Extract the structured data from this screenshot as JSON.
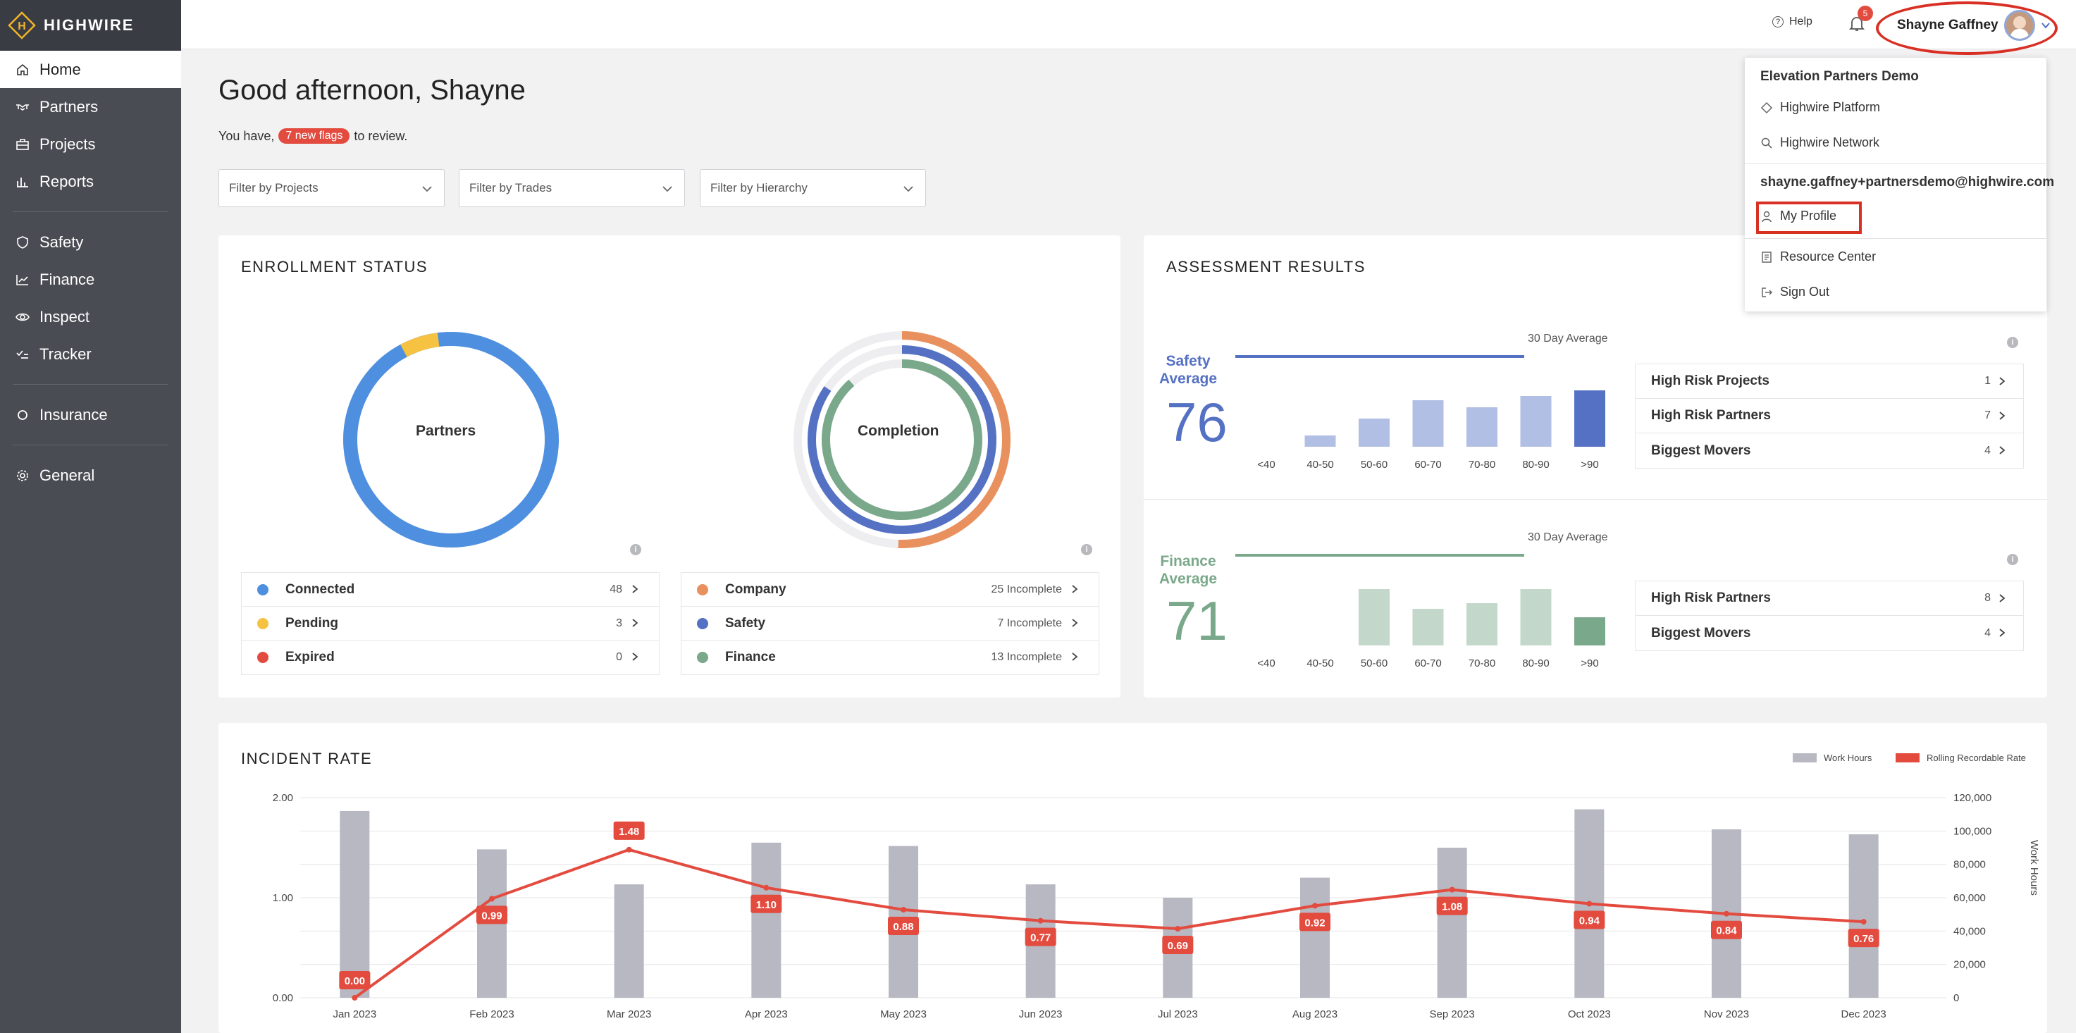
{
  "app": {
    "name": "HIGHWIRE"
  },
  "sidebar": {
    "items": [
      {
        "label": "Home",
        "icon": "home-icon"
      },
      {
        "label": "Partners",
        "icon": "handshake-icon"
      },
      {
        "label": "Projects",
        "icon": "briefcase-icon"
      },
      {
        "label": "Reports",
        "icon": "bar-chart-icon"
      },
      {
        "label": "Safety",
        "icon": "shield-icon"
      },
      {
        "label": "Finance",
        "icon": "trend-icon"
      },
      {
        "label": "Inspect",
        "icon": "eye-icon"
      },
      {
        "label": "Tracker",
        "icon": "check-list-icon"
      },
      {
        "label": "Insurance",
        "icon": "umbrella-icon"
      },
      {
        "label": "General",
        "icon": "gear-icon"
      }
    ]
  },
  "topbar": {
    "help": "Help",
    "notifications": "5",
    "user_name": "Shayne Gaffney"
  },
  "greeting": "Good afternoon, Shayne",
  "review": {
    "prefix": "You have,",
    "flags": "7 new flags",
    "suffix": "to review."
  },
  "filters": [
    "Filter by Projects",
    "Filter by Trades",
    "Filter by Hierarchy"
  ],
  "enrollment": {
    "title": "ENROLLMENT STATUS",
    "partners_label": "Partners",
    "completion_label": "Completion",
    "partners": [
      {
        "label": "Connected",
        "count": "48",
        "color": "#4f8fdf"
      },
      {
        "label": "Pending",
        "count": "3",
        "color": "#f5c242"
      },
      {
        "label": "Expired",
        "count": "0",
        "color": "#e34b3f"
      }
    ],
    "completion": [
      {
        "label": "Company",
        "count": "25 Incomplete",
        "color": "#e9905f"
      },
      {
        "label": "Safety",
        "count": "7 Incomplete",
        "color": "#5571c4"
      },
      {
        "label": "Finance",
        "count": "13 Incomplete",
        "color": "#7aa88a"
      }
    ]
  },
  "assessment": {
    "title": "ASSESSMENT RESULTS",
    "thirty_day": "30 Day Average",
    "bins": [
      "<40",
      "40-50",
      "50-60",
      "60-70",
      "70-80",
      "80-90",
      ">90"
    ],
    "safety": {
      "label1": "Safety",
      "label2": "Average",
      "value": "76",
      "color": "#5571c4",
      "bars": [
        0,
        8,
        20,
        33,
        28,
        36,
        40
      ],
      "rows": [
        {
          "label": "High Risk Projects",
          "count": "1"
        },
        {
          "label": "High Risk Partners",
          "count": "7"
        },
        {
          "label": "Biggest Movers",
          "count": "4"
        }
      ]
    },
    "finance": {
      "label1": "Finance",
      "label2": "Average",
      "value": "71",
      "color": "#7aa88a",
      "bars": [
        0,
        0,
        40,
        26,
        30,
        40,
        20
      ],
      "rows": [
        {
          "label": "High Risk Partners",
          "count": "8"
        },
        {
          "label": "Biggest Movers",
          "count": "4"
        }
      ]
    }
  },
  "incident": {
    "title": "INCIDENT RATE",
    "legend_bar": "Work Hours",
    "legend_line": "Rolling Recordable Rate",
    "y_right_label": "Work Hours"
  },
  "chart_data": {
    "type": "bar",
    "categories": [
      "Jan 2023",
      "Feb 2023",
      "Mar 2023",
      "Apr 2023",
      "May 2023",
      "Jun 2023",
      "Jul 2023",
      "Aug 2023",
      "Sep 2023",
      "Oct 2023",
      "Nov 2023",
      "Dec 2023"
    ],
    "series": [
      {
        "name": "Work Hours",
        "type": "bar",
        "axis": "right",
        "values": [
          112000,
          89000,
          68000,
          93000,
          91000,
          68000,
          60000,
          72000,
          90000,
          113000,
          101000,
          98000
        ]
      },
      {
        "name": "Rolling Recordable Rate",
        "type": "line",
        "axis": "left",
        "values": [
          0.0,
          0.99,
          1.48,
          1.1,
          0.88,
          0.77,
          0.69,
          0.92,
          1.08,
          0.94,
          0.84,
          0.76
        ]
      }
    ],
    "yticks_left": [
      "0.00",
      "1.00",
      "2.00"
    ],
    "yticks_right": [
      "0",
      "20,000",
      "40,000",
      "60,000",
      "80,000",
      "100,000",
      "120,000"
    ],
    "ylim_left": [
      0,
      2
    ],
    "ylim_right": [
      0,
      120000
    ]
  },
  "menu": {
    "org": "Elevation Partners Demo",
    "platform": "Highwire Platform",
    "network": "Highwire Network",
    "email": "shayne.gaffney+partnersdemo@highwire.com",
    "profile": "My Profile",
    "resources": "Resource Center",
    "signout": "Sign Out"
  },
  "colors": {
    "accent": "#e34b3f",
    "sidebar": "#4a4c54",
    "bar_gray": "#b7b8c1",
    "line_red": "#e34b3f"
  }
}
